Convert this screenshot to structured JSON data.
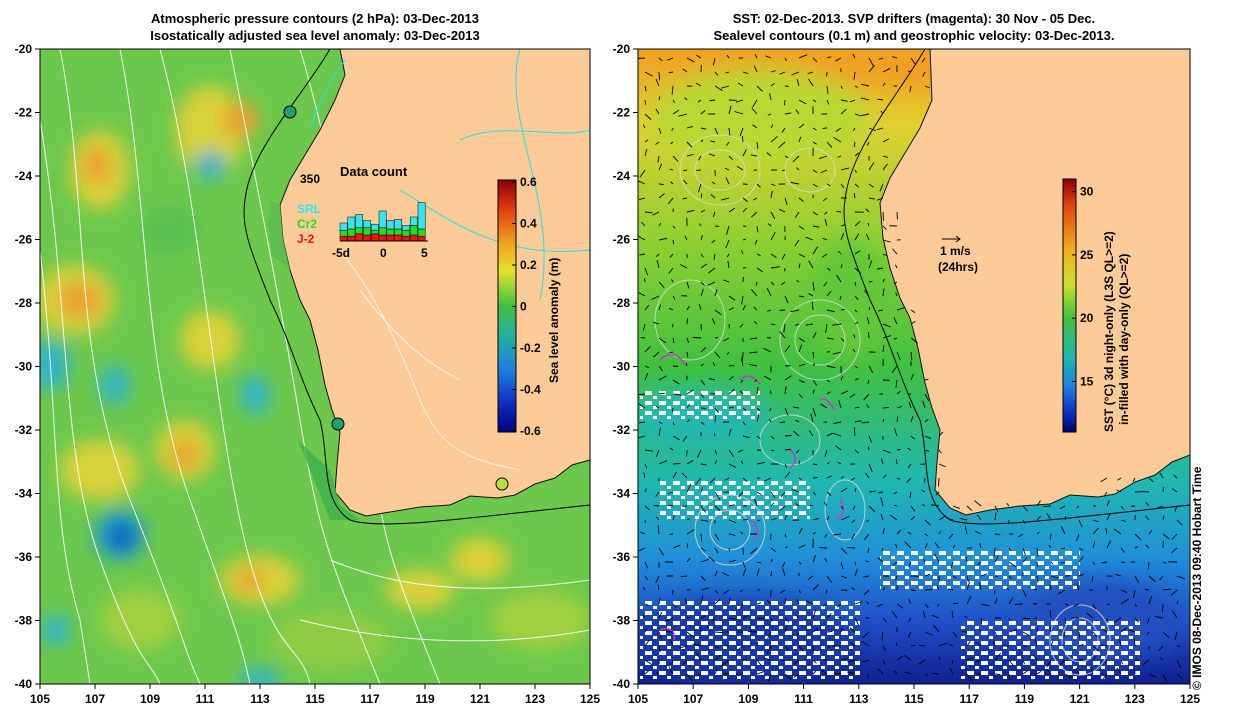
{
  "left_panel": {
    "title_line1": "Atmospheric pressure contours (2 hPa): 03-Dec-2013",
    "title_line2": "Isostatically adjusted sea level anomaly: 03-Dec-2013",
    "x_ticks": [
      "105",
      "107",
      "109",
      "111",
      "113",
      "115",
      "117",
      "119",
      "121",
      "123",
      "125"
    ],
    "y_ticks": [
      "-20",
      "-22",
      "-24",
      "-26",
      "-28",
      "-30",
      "-32",
      "-34",
      "-36",
      "-38",
      "-40"
    ],
    "colorbar": {
      "label": "Sea level anomaly (m)",
      "ticks": [
        "0.6",
        "0.4",
        "0.2",
        "0",
        "-0.2",
        "-0.4",
        "-0.6"
      ],
      "range": [
        -0.6,
        0.6
      ]
    },
    "inset": {
      "title": "Data count",
      "y_label": "350",
      "x_ticks": [
        "-5d",
        "0",
        "5"
      ],
      "legend": [
        {
          "label": "SRL",
          "color": "#33e6ee"
        },
        {
          "label": "Cr2",
          "color": "#22dd22"
        },
        {
          "label": "J-2",
          "color": "#ee1111"
        }
      ]
    }
  },
  "right_panel": {
    "title_line1": "SST: 02-Dec-2013. SVP drifters (magenta): 30 Nov - 05 Dec.",
    "title_line2": "Sealevel contours (0.1 m) and geostrophic velocity: 03-Dec-2013.",
    "x_ticks": [
      "105",
      "107",
      "109",
      "111",
      "113",
      "115",
      "117",
      "119",
      "121",
      "123",
      "125"
    ],
    "y_ticks": [
      "-20",
      "-22",
      "-24",
      "-26",
      "-28",
      "-30",
      "-32",
      "-34",
      "-36",
      "-38",
      "-40"
    ],
    "scale_arrow": {
      "label_line1": "1 m/s",
      "label_line2": "(24hrs)"
    },
    "colorbar": {
      "label_line1": "SST (°C) 3d night-only (L3S QL>=2)",
      "label_line2": "in-filled with day-only (QL>=2)",
      "ticks": [
        "30",
        "25",
        "20",
        "15"
      ],
      "range": [
        11,
        31
      ]
    }
  },
  "credit": "© IMOS 08-Dec-2013 09:40 Hobart Time",
  "colors": {
    "land": "#fdcb98",
    "coast_line": "#111111",
    "drifter": "#cc33cc",
    "contour": "#ffffff"
  }
}
